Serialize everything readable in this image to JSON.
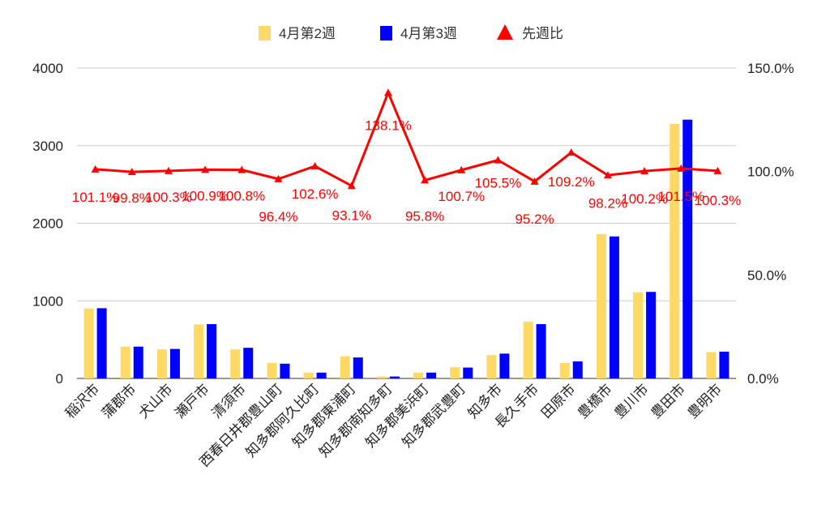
{
  "chart_data": {
    "type": "bar",
    "categories": [
      "稲沢市",
      "蒲郡市",
      "犬山市",
      "瀬戸市",
      "清須市",
      "西春日井郡豊山町",
      "知多郡阿久比町",
      "知多郡東浦町",
      "知多郡南知多町",
      "知多郡美浜町",
      "知多郡武豊町",
      "知多市",
      "長久手市",
      "田原市",
      "豊橋市",
      "豊川市",
      "豊田市",
      "豊明市"
    ],
    "series": [
      {
        "name": "4月第2週",
        "kind": "bar",
        "axis": "left",
        "color": "#FFD966",
        "values": [
          900,
          410,
          375,
          695,
          375,
          200,
          75,
          285,
          25,
          75,
          145,
          300,
          730,
          200,
          1860,
          1110,
          3280,
          340
        ]
      },
      {
        "name": "4月第3週",
        "kind": "bar",
        "axis": "left",
        "color": "#0000FF",
        "values": [
          905,
          410,
          380,
          700,
          395,
          190,
          75,
          270,
          25,
          75,
          140,
          320,
          700,
          220,
          1830,
          1115,
          3335,
          345
        ]
      },
      {
        "name": "先週比",
        "kind": "line",
        "axis": "right",
        "color": "#FF0000",
        "values": [
          101.1,
          99.8,
          100.3,
          100.9,
          100.8,
          96.4,
          102.6,
          93.1,
          138.1,
          95.8,
          100.7,
          105.5,
          95.2,
          109.2,
          98.2,
          100.2,
          101.5,
          100.3
        ],
        "labels": [
          "101.1%",
          "99.8%",
          "100.3%",
          "100.9%",
          "100.8%",
          "96.4%",
          "102.6%",
          "93.1%",
          "138.1%",
          "95.8%",
          "100.7%",
          "105.5%",
          "95.2%",
          "109.2%",
          "98.2%",
          "100.2%",
          "101.5%",
          "100.3%"
        ]
      }
    ],
    "y_left": {
      "min": 0,
      "max": 4000,
      "ticks": [
        "0",
        "1000",
        "2000",
        "3000",
        "4000"
      ],
      "tick_values": [
        0,
        1000,
        2000,
        3000,
        4000
      ]
    },
    "y_right": {
      "min": 0,
      "max": 150,
      "ticks": [
        "0.0%",
        "50.0%",
        "100.0%",
        "150.0%"
      ],
      "tick_values": [
        0,
        50,
        100,
        150
      ]
    },
    "legend_position": "top",
    "grid": true
  }
}
